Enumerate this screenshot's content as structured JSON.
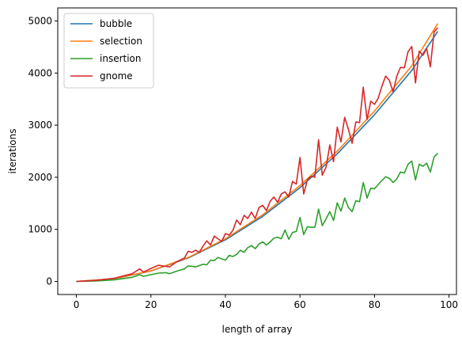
{
  "chart_data": {
    "type": "line",
    "title": "",
    "xlabel": "length of array",
    "ylabel": "iterations",
    "xlim": [
      -5,
      102
    ],
    "ylim": [
      -250,
      5250
    ],
    "xticks": [
      0,
      20,
      40,
      60,
      80,
      100
    ],
    "yticks": [
      0,
      1000,
      2000,
      3000,
      4000,
      5000
    ],
    "grid": false,
    "legend": "top-left",
    "series": [
      {
        "name": "bubble",
        "color": "#1f77b4",
        "x": [
          0,
          10,
          20,
          30,
          40,
          50,
          60,
          70,
          80,
          90,
          97
        ],
        "y": [
          0,
          50,
          200,
          450,
          800,
          1250,
          1800,
          2450,
          3200,
          4050,
          4800
        ]
      },
      {
        "name": "selection",
        "color": "#ff7f0e",
        "x": [
          0,
          10,
          20,
          30,
          40,
          50,
          60,
          70,
          80,
          90,
          97
        ],
        "y": [
          0,
          52,
          205,
          460,
          820,
          1280,
          1840,
          2500,
          3270,
          4140,
          4950
        ]
      },
      {
        "name": "insertion",
        "color": "#2ca02c",
        "x": [
          0,
          5,
          10,
          15,
          17,
          18,
          20,
          22,
          24,
          25,
          27,
          29,
          30,
          32,
          34,
          35,
          36,
          37,
          38,
          40,
          41,
          42,
          43,
          44,
          45,
          46,
          47,
          48,
          49,
          50,
          51,
          52,
          53,
          54,
          55,
          56,
          57,
          58,
          59,
          60,
          61,
          62,
          63,
          64,
          65,
          66,
          67,
          68,
          69,
          70,
          71,
          72,
          73,
          74,
          75,
          76,
          77,
          78,
          79,
          80,
          81,
          82,
          83,
          84,
          85,
          86,
          87,
          88,
          89,
          90,
          91,
          92,
          93,
          94,
          95,
          96,
          97
        ],
        "y": [
          0,
          10,
          30,
          80,
          130,
          100,
          130,
          160,
          170,
          150,
          200,
          240,
          300,
          280,
          330,
          320,
          410,
          400,
          460,
          410,
          500,
          480,
          520,
          600,
          560,
          650,
          690,
          630,
          720,
          760,
          700,
          760,
          830,
          850,
          820,
          990,
          810,
          940,
          960,
          1230,
          900,
          1050,
          1040,
          1040,
          1390,
          1070,
          1200,
          1340,
          1170,
          1510,
          1350,
          1600,
          1420,
          1340,
          1550,
          1530,
          1900,
          1600,
          1790,
          1780,
          1860,
          1940,
          2010,
          1980,
          1900,
          1970,
          2100,
          2080,
          2250,
          2310,
          1950,
          2250,
          2210,
          2270,
          2100,
          2390,
          2460
        ]
      },
      {
        "name": "gnome",
        "color": "#d62728",
        "x": [
          0,
          5,
          10,
          15,
          17,
          18,
          20,
          22,
          24,
          25,
          27,
          29,
          30,
          31,
          32,
          33,
          34,
          35,
          36,
          37,
          38,
          39,
          40,
          41,
          42,
          43,
          44,
          45,
          46,
          47,
          48,
          49,
          50,
          51,
          52,
          53,
          54,
          55,
          56,
          57,
          58,
          59,
          60,
          61,
          62,
          63,
          64,
          65,
          66,
          67,
          68,
          69,
          70,
          71,
          72,
          73,
          74,
          75,
          76,
          77,
          78,
          79,
          80,
          81,
          82,
          83,
          84,
          85,
          86,
          87,
          88,
          89,
          90,
          91,
          92,
          93,
          94,
          95,
          96,
          97
        ],
        "y": [
          0,
          20,
          60,
          150,
          240,
          180,
          250,
          310,
          290,
          280,
          380,
          450,
          580,
          560,
          600,
          560,
          680,
          780,
          700,
          870,
          820,
          770,
          920,
          890,
          980,
          1180,
          1090,
          1270,
          1210,
          1330,
          1210,
          1420,
          1460,
          1360,
          1540,
          1620,
          1520,
          1680,
          1720,
          1620,
          1920,
          1870,
          2380,
          1680,
          1950,
          2020,
          2000,
          2720,
          2040,
          2190,
          2620,
          2300,
          2960,
          2680,
          3150,
          2920,
          2650,
          3060,
          3050,
          3730,
          3110,
          3460,
          3400,
          3520,
          3750,
          3940,
          3860,
          3640,
          3940,
          4110,
          4100,
          4410,
          4510,
          3810,
          4420,
          4340,
          4470,
          4120,
          4790,
          4870
        ]
      }
    ]
  }
}
